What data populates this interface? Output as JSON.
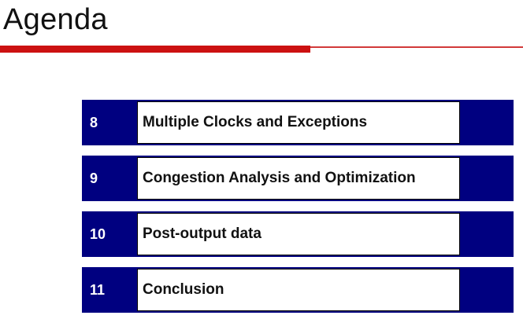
{
  "slide": {
    "title": "Agenda",
    "accent_color": "#cc1111",
    "row_color": "#000080"
  },
  "agenda": {
    "items": [
      {
        "number": "8",
        "label": "Multiple Clocks and Exceptions"
      },
      {
        "number": "9",
        "label": "Congestion Analysis and Optimization"
      },
      {
        "number": "10",
        "label": "Post-output data"
      },
      {
        "number": "11",
        "label": "Conclusion"
      }
    ]
  }
}
